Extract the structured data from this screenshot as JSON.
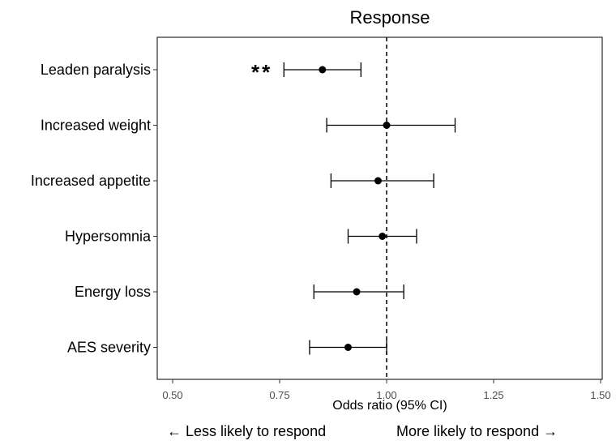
{
  "chart_data": {
    "type": "forest",
    "title": "Response",
    "xlabel": "Odds ratio (95% CI)",
    "xlim": [
      0.45,
      1.52
    ],
    "xticks": [
      "0.50",
      "0.75",
      "1.00",
      "1.25",
      "1.50"
    ],
    "xtick_values": [
      0.5,
      0.75,
      1.0,
      1.25,
      1.5
    ],
    "reference_line": 1.0,
    "grid": false,
    "rows": [
      {
        "label": "Leaden paralysis",
        "or": 0.85,
        "lower": 0.76,
        "upper": 0.94,
        "annotation": "**"
      },
      {
        "label": "Increased weight",
        "or": 1.0,
        "lower": 0.86,
        "upper": 1.16,
        "annotation": ""
      },
      {
        "label": "Increased appetite",
        "or": 0.98,
        "lower": 0.87,
        "upper": 1.11,
        "annotation": ""
      },
      {
        "label": "Hypersomnia",
        "or": 0.99,
        "lower": 0.91,
        "upper": 1.07,
        "annotation": ""
      },
      {
        "label": "Energy loss",
        "or": 0.93,
        "lower": 0.83,
        "upper": 1.04,
        "annotation": ""
      },
      {
        "label": "AES severity",
        "or": 0.91,
        "lower": 0.82,
        "upper": 1.0,
        "annotation": ""
      }
    ]
  },
  "footer": {
    "left_text": "← Less likely to respond",
    "right_text": "More likely to respond →"
  }
}
